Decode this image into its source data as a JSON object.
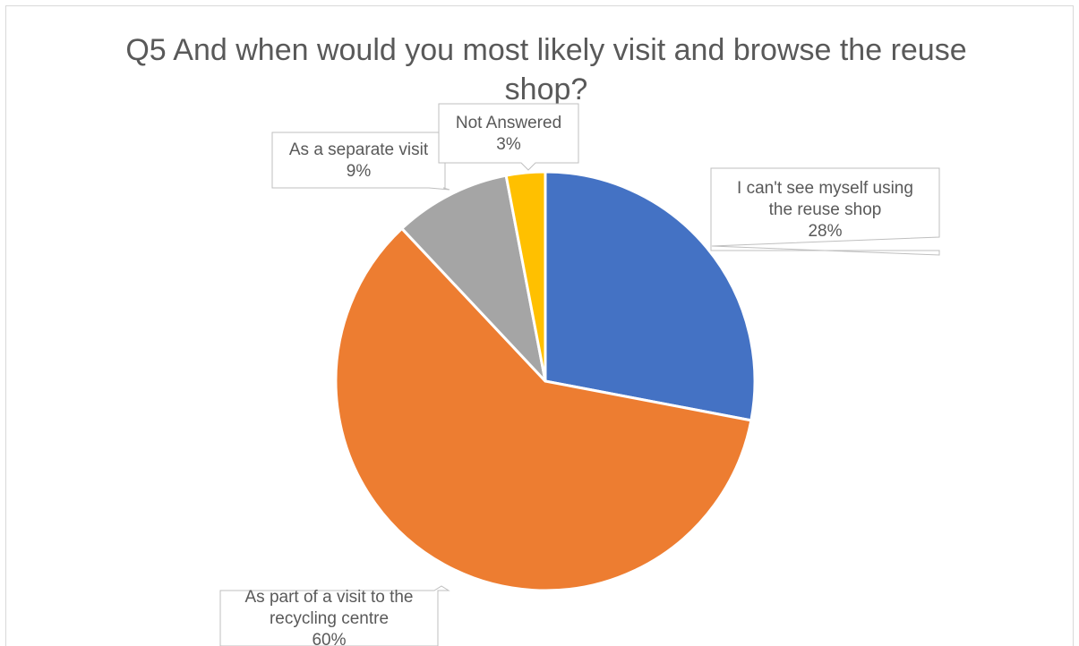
{
  "chart_data": {
    "type": "pie",
    "title": "Q5 And when would you most likely visit and browse the reuse shop?",
    "slices": [
      {
        "label": "I can't see myself using the reuse shop",
        "label_lines": [
          "I can't see myself using",
          "the reuse shop"
        ],
        "value": 28,
        "value_label": "28%",
        "color": "#4472C4"
      },
      {
        "label": "As part of a visit to the recycling centre",
        "label_lines": [
          "As part of a visit to the",
          "recycling centre"
        ],
        "value": 60,
        "value_label": "60%",
        "color": "#ED7D31"
      },
      {
        "label": "As a separate visit",
        "label_lines": [
          "As a separate visit"
        ],
        "value": 9,
        "value_label": "9%",
        "color": "#A5A5A5"
      },
      {
        "label": "Not Answered",
        "label_lines": [
          "Not Answered"
        ],
        "value": 3,
        "value_label": "3%",
        "color": "#FFC000"
      }
    ],
    "start_angle_deg": 0,
    "direction": "clockwise",
    "legend": "none",
    "data_labels": "callouts"
  }
}
